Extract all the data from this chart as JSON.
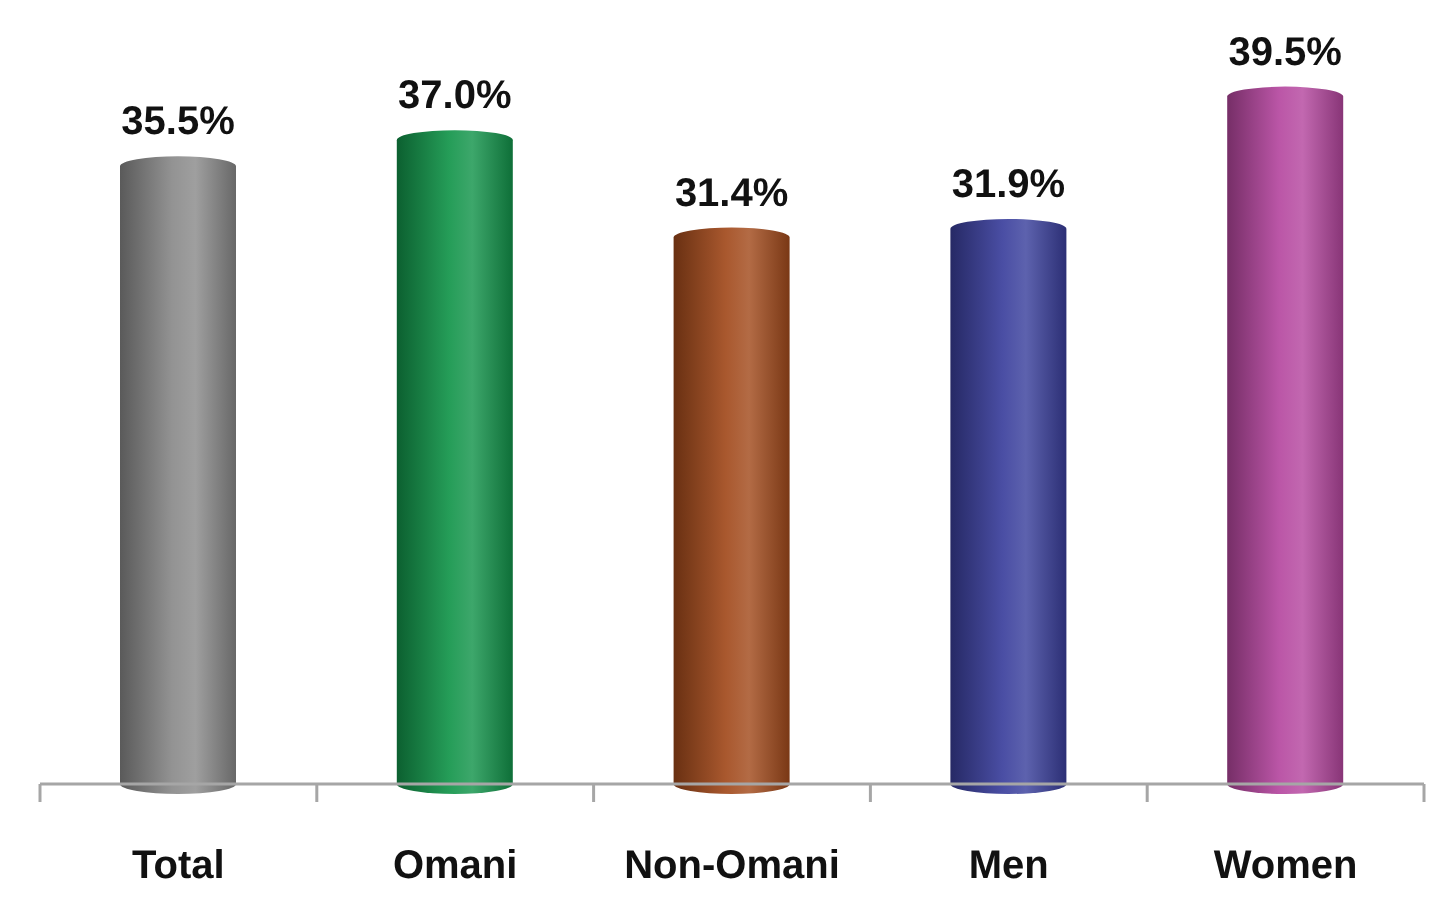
{
  "chart_data": {
    "type": "bar",
    "categories": [
      "Total",
      "Omani",
      "Non-Omani",
      "Men",
      "Women"
    ],
    "values": [
      35.5,
      37.0,
      31.4,
      31.9,
      39.5
    ],
    "colors": [
      "#8a8a8a",
      "#12944a",
      "#a24a1c",
      "#3a3f9c",
      "#b5479f"
    ],
    "value_labels": [
      "35.5%",
      "37.0%",
      "31.4%",
      "31.9%",
      "39.5%"
    ]
  }
}
